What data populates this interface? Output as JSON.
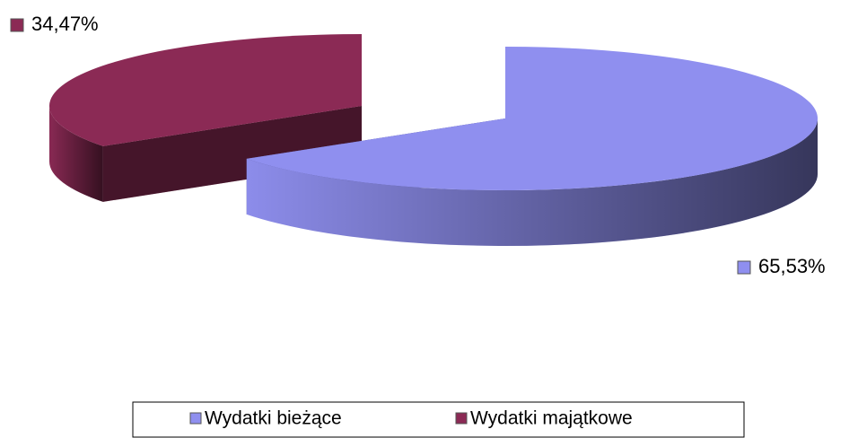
{
  "chart_data": {
    "type": "pie",
    "categories": [
      "Wydatki bieżące",
      "Wydatki majątkowe"
    ],
    "values": [
      65.53,
      34.47
    ],
    "value_labels": [
      "65,53%",
      "34,47%"
    ],
    "colors": [
      "#8f8fef",
      "#8b2a55"
    ]
  }
}
